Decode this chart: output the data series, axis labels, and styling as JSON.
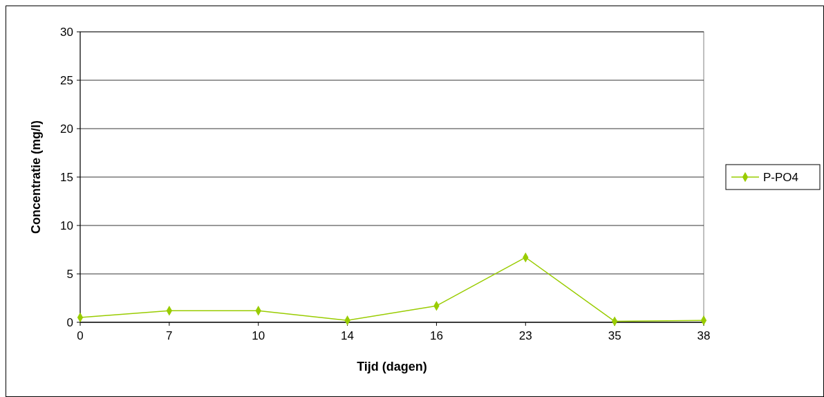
{
  "chart_data": {
    "type": "line",
    "xlabel": "Tijd (dagen)",
    "ylabel": "Concentratie (mg/l)",
    "categories": [
      "0",
      "7",
      "10",
      "14",
      "16",
      "23",
      "35",
      "38"
    ],
    "series": [
      {
        "name": "P-PO4",
        "color": "#99cc00",
        "values": [
          0.5,
          1.2,
          1.2,
          0.2,
          1.7,
          6.7,
          0.1,
          0.2
        ]
      }
    ],
    "ylim": [
      0,
      30
    ],
    "yticks": [
      0,
      5,
      10,
      15,
      20,
      25,
      30
    ],
    "grid": "y",
    "legend": "right",
    "marker": "diamond",
    "line_style": "solid"
  }
}
